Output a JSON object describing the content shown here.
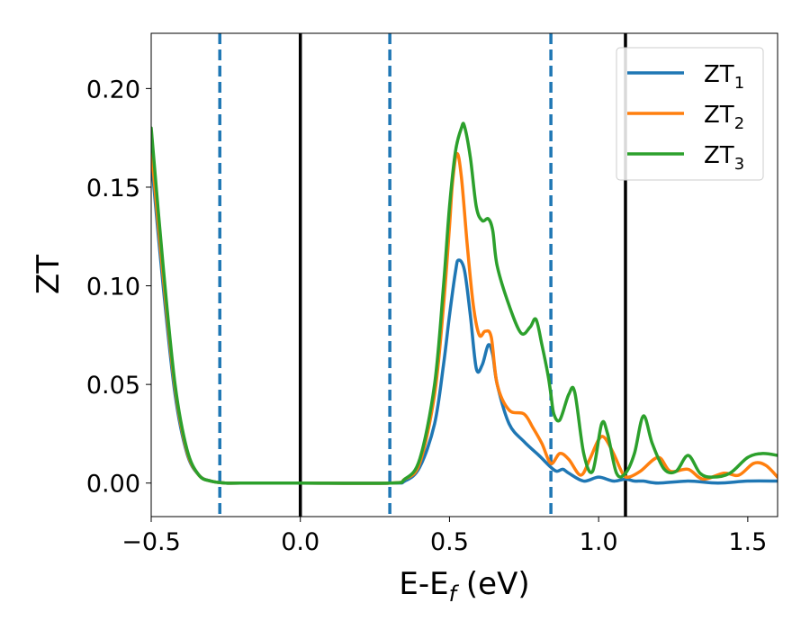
{
  "chart_data": {
    "type": "line",
    "xlabel": "E-E",
    "xlabel_sub": "f",
    "xlabel_unit": " (eV)",
    "ylabel": "ZT",
    "xlim": [
      -0.5,
      1.6
    ],
    "ylim": [
      -0.017,
      0.228
    ],
    "xticks": [
      -0.5,
      0.0,
      0.5,
      1.0,
      1.5
    ],
    "xtick_labels": [
      "−0.5",
      "0.0",
      "0.5",
      "1.0",
      "1.5"
    ],
    "yticks": [
      0.0,
      0.05,
      0.1,
      0.15,
      0.2
    ],
    "ytick_labels": [
      "0.00",
      "0.05",
      "0.10",
      "0.15",
      "0.20"
    ],
    "grid": false,
    "legend_position": "top-right",
    "vlines_solid": [
      0.0,
      1.09
    ],
    "vlines_dashed": [
      -0.27,
      0.3,
      0.84
    ],
    "series": [
      {
        "name": "ZT",
        "name_sub": "1",
        "color": "#1f77b4",
        "x": [
          -0.5,
          -0.46,
          -0.42,
          -0.38,
          -0.34,
          -0.3,
          -0.25,
          -0.2,
          0.0,
          0.3,
          0.35,
          0.4,
          0.45,
          0.48,
          0.5,
          0.52,
          0.53,
          0.55,
          0.57,
          0.59,
          0.61,
          0.63,
          0.645,
          0.66,
          0.7,
          0.75,
          0.8,
          0.84,
          0.86,
          0.88,
          0.9,
          0.95,
          1.0,
          1.05,
          1.09,
          1.12,
          1.15,
          1.2,
          1.3,
          1.4,
          1.5,
          1.6
        ],
        "y": [
          0.165,
          0.1,
          0.045,
          0.015,
          0.004,
          0.001,
          0.0,
          0.0,
          0.0,
          0.0,
          0.001,
          0.008,
          0.03,
          0.06,
          0.085,
          0.107,
          0.113,
          0.108,
          0.085,
          0.058,
          0.06,
          0.07,
          0.065,
          0.05,
          0.03,
          0.021,
          0.014,
          0.008,
          0.006,
          0.007,
          0.005,
          0.001,
          0.003,
          0.001,
          0.002,
          0.001,
          0.001,
          0.0,
          0.001,
          0.0,
          0.001,
          0.001
        ]
      },
      {
        "name": "ZT",
        "name_sub": "2",
        "color": "#ff7f0e",
        "x": [
          -0.5,
          -0.46,
          -0.42,
          -0.38,
          -0.34,
          -0.3,
          -0.25,
          -0.2,
          0.0,
          0.3,
          0.35,
          0.4,
          0.45,
          0.48,
          0.5,
          0.51,
          0.525,
          0.54,
          0.56,
          0.58,
          0.6,
          0.62,
          0.64,
          0.66,
          0.7,
          0.75,
          0.78,
          0.81,
          0.84,
          0.87,
          0.9,
          0.94,
          0.97,
          1.0,
          1.02,
          1.05,
          1.08,
          1.1,
          1.14,
          1.2,
          1.24,
          1.3,
          1.35,
          1.42,
          1.47,
          1.52,
          1.56,
          1.6
        ],
        "y": [
          0.17,
          0.105,
          0.048,
          0.016,
          0.004,
          0.001,
          0.0,
          0.0,
          0.0,
          0.0,
          0.002,
          0.01,
          0.045,
          0.09,
          0.13,
          0.152,
          0.167,
          0.155,
          0.12,
          0.09,
          0.075,
          0.077,
          0.074,
          0.05,
          0.037,
          0.035,
          0.028,
          0.02,
          0.01,
          0.015,
          0.012,
          0.004,
          0.012,
          0.022,
          0.023,
          0.015,
          0.005,
          0.003,
          0.006,
          0.013,
          0.006,
          0.007,
          0.002,
          0.005,
          0.004,
          0.01,
          0.009,
          0.003
        ]
      },
      {
        "name": "ZT",
        "name_sub": "3",
        "color": "#2ca02c",
        "x": [
          -0.5,
          -0.46,
          -0.42,
          -0.38,
          -0.34,
          -0.3,
          -0.25,
          -0.2,
          0.0,
          0.3,
          0.35,
          0.4,
          0.45,
          0.48,
          0.5,
          0.52,
          0.54,
          0.55,
          0.57,
          0.59,
          0.61,
          0.63,
          0.645,
          0.66,
          0.7,
          0.74,
          0.77,
          0.79,
          0.81,
          0.83,
          0.84,
          0.85,
          0.87,
          0.9,
          0.92,
          0.95,
          0.98,
          1.01,
          1.03,
          1.06,
          1.09,
          1.12,
          1.15,
          1.18,
          1.22,
          1.26,
          1.3,
          1.34,
          1.38,
          1.44,
          1.5,
          1.55,
          1.6
        ],
        "y": [
          0.18,
          0.11,
          0.05,
          0.017,
          0.004,
          0.001,
          0.0,
          0.0,
          0.0,
          0.0,
          0.002,
          0.012,
          0.05,
          0.1,
          0.14,
          0.168,
          0.18,
          0.181,
          0.165,
          0.14,
          0.133,
          0.134,
          0.128,
          0.11,
          0.09,
          0.076,
          0.079,
          0.083,
          0.07,
          0.055,
          0.045,
          0.035,
          0.032,
          0.045,
          0.046,
          0.015,
          0.006,
          0.03,
          0.025,
          0.005,
          0.005,
          0.015,
          0.034,
          0.02,
          0.007,
          0.006,
          0.014,
          0.005,
          0.003,
          0.005,
          0.013,
          0.015,
          0.014
        ]
      }
    ]
  }
}
